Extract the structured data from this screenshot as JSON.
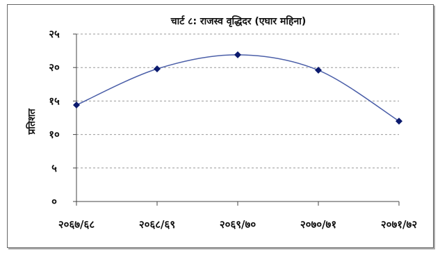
{
  "chart_data": {
    "type": "line",
    "title": "चार्ट ८: राजस्व वृद्धिदर (एघार महिना)",
    "xlabel": "",
    "ylabel": "प्रतिशत",
    "categories": [
      "२०६७/६८",
      "२०६८/६९",
      "२०६९/७०",
      "२०७०/७१",
      "२०७१/७२"
    ],
    "series": [
      {
        "values": [
          14.4,
          19.8,
          21.9,
          19.6,
          12.0
        ]
      }
    ],
    "ylim": [
      0,
      25
    ],
    "yticks": [
      "०",
      "५",
      "१०",
      "१५",
      "२०",
      "२५"
    ],
    "grid": true,
    "smooth": true,
    "marker": "diamond",
    "colors": {
      "line": "#4a5ea8",
      "marker": "#0b1a6e",
      "grid": "#999999"
    }
  }
}
